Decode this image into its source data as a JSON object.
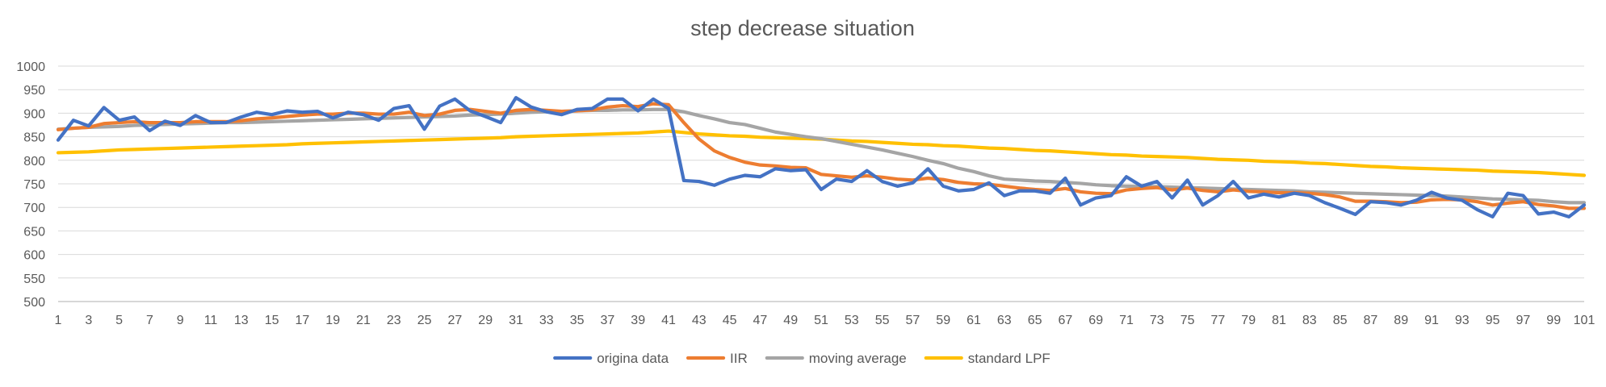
{
  "chart_data": {
    "type": "line",
    "title": "step decrease situation",
    "xlabel": "",
    "ylabel": "",
    "x": [
      1,
      2,
      3,
      4,
      5,
      6,
      7,
      8,
      9,
      10,
      11,
      12,
      13,
      14,
      15,
      16,
      17,
      18,
      19,
      20,
      21,
      22,
      23,
      24,
      25,
      26,
      27,
      28,
      29,
      30,
      31,
      32,
      33,
      34,
      35,
      36,
      37,
      38,
      39,
      40,
      41,
      42,
      43,
      44,
      45,
      46,
      47,
      48,
      49,
      50,
      51,
      52,
      53,
      54,
      55,
      56,
      57,
      58,
      59,
      60,
      61,
      62,
      63,
      64,
      65,
      66,
      67,
      68,
      69,
      70,
      71,
      72,
      73,
      74,
      75,
      76,
      77,
      78,
      79,
      80,
      81,
      82,
      83,
      84,
      85,
      86,
      87,
      88,
      89,
      90,
      91,
      92,
      93,
      94,
      95,
      96,
      97,
      98,
      99,
      100,
      101
    ],
    "x_tick_labels": [
      "1",
      "3",
      "5",
      "7",
      "9",
      "11",
      "13",
      "15",
      "17",
      "19",
      "21",
      "23",
      "25",
      "27",
      "29",
      "31",
      "33",
      "35",
      "37",
      "39",
      "41",
      "43",
      "45",
      "47",
      "49",
      "51",
      "53",
      "55",
      "57",
      "59",
      "61",
      "63",
      "65",
      "67",
      "69",
      "71",
      "73",
      "75",
      "77",
      "79",
      "81",
      "83",
      "85",
      "87",
      "89",
      "91",
      "93",
      "95",
      "97",
      "99",
      "101"
    ],
    "ylim": [
      500,
      1000
    ],
    "y_ticks": [
      "500",
      "550",
      "600",
      "650",
      "700",
      "750",
      "800",
      "850",
      "900",
      "950",
      "1000"
    ],
    "grid": true,
    "legend_position": "bottom",
    "series": [
      {
        "name": "origina data",
        "color": "#4472c4",
        "values": [
          843,
          885,
          873,
          912,
          885,
          892,
          863,
          883,
          874,
          895,
          880,
          880,
          892,
          902,
          897,
          905,
          902,
          904,
          890,
          902,
          897,
          885,
          910,
          916,
          866,
          915,
          930,
          905,
          893,
          880,
          933,
          913,
          903,
          897,
          908,
          910,
          930,
          930,
          905,
          930,
          910,
          757,
          755,
          747,
          760,
          768,
          765,
          782,
          778,
          780,
          738,
          760,
          755,
          778,
          755,
          745,
          752,
          782,
          745,
          735,
          738,
          752,
          725,
          735,
          735,
          730,
          762,
          705,
          720,
          725,
          765,
          745,
          755,
          720,
          758,
          705,
          725,
          755,
          720,
          728,
          722,
          730,
          725,
          710,
          698,
          685,
          712,
          710,
          705,
          715,
          732,
          720,
          715,
          695,
          680,
          730,
          725,
          686,
          690,
          680,
          705
        ]
      },
      {
        "name": "IIR",
        "color": "#ed7d31",
        "values": [
          865,
          868,
          870,
          878,
          880,
          882,
          880,
          880,
          880,
          882,
          882,
          882,
          884,
          888,
          890,
          893,
          896,
          898,
          898,
          900,
          900,
          898,
          898,
          902,
          895,
          898,
          906,
          908,
          904,
          900,
          906,
          908,
          906,
          904,
          905,
          907,
          913,
          916,
          914,
          920,
          918,
          880,
          845,
          820,
          806,
          796,
          790,
          788,
          785,
          784,
          770,
          767,
          764,
          767,
          764,
          760,
          758,
          762,
          759,
          753,
          750,
          749,
          745,
          741,
          738,
          736,
          740,
          733,
          730,
          729,
          737,
          740,
          742,
          737,
          741,
          736,
          733,
          737,
          734,
          733,
          731,
          731,
          730,
          727,
          722,
          713,
          713,
          712,
          710,
          711,
          716,
          717,
          716,
          712,
          705,
          709,
          712,
          706,
          703,
          698,
          698
        ]
      },
      {
        "name": "moving average",
        "color": "#a5a5a5",
        "values": [
          866,
          868,
          870,
          871,
          872,
          874,
          875,
          876,
          877,
          878,
          879,
          880,
          880,
          881,
          882,
          883,
          884,
          885,
          886,
          887,
          888,
          889,
          890,
          891,
          892,
          893,
          894,
          896,
          897,
          898,
          900,
          902,
          903,
          904,
          905,
          906,
          906,
          907,
          907,
          908,
          908,
          903,
          895,
          888,
          880,
          876,
          868,
          860,
          855,
          850,
          846,
          840,
          834,
          828,
          822,
          815,
          808,
          800,
          793,
          783,
          776,
          767,
          760,
          758,
          756,
          755,
          753,
          751,
          748,
          746,
          745,
          744,
          744,
          743,
          742,
          741,
          740,
          739,
          738,
          737,
          736,
          735,
          733,
          732,
          731,
          730,
          729,
          728,
          727,
          726,
          725,
          724,
          722,
          720,
          718,
          717,
          716,
          715,
          712,
          710,
          710
        ]
      },
      {
        "name": "standard LPF",
        "color": "#ffc000",
        "values": [
          816,
          817,
          818,
          820,
          822,
          823,
          824,
          825,
          826,
          827,
          828,
          829,
          830,
          831,
          832,
          833,
          835,
          836,
          837,
          838,
          839,
          840,
          841,
          842,
          843,
          844,
          845,
          846,
          847,
          848,
          850,
          851,
          852,
          853,
          854,
          855,
          856,
          857,
          858,
          860,
          862,
          859,
          856,
          854,
          852,
          851,
          849,
          848,
          847,
          846,
          845,
          843,
          841,
          840,
          838,
          836,
          834,
          833,
          831,
          830,
          828,
          826,
          825,
          823,
          821,
          820,
          818,
          816,
          814,
          812,
          811,
          809,
          808,
          807,
          806,
          804,
          802,
          801,
          800,
          798,
          797,
          796,
          794,
          793,
          791,
          789,
          787,
          786,
          784,
          783,
          782,
          781,
          780,
          779,
          777,
          776,
          775,
          774,
          772,
          770,
          768
        ]
      }
    ]
  }
}
